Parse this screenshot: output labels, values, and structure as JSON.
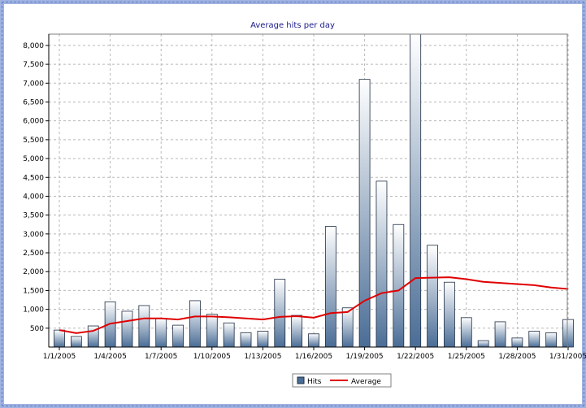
{
  "chart_data": {
    "type": "bar",
    "title": "Average hits per day",
    "xlabel": "",
    "ylabel": "",
    "ylim": [
      0,
      8300
    ],
    "yticks": [
      500,
      1000,
      1500,
      2000,
      2500,
      3000,
      3500,
      4000,
      4500,
      5000,
      5500,
      6000,
      6500,
      7000,
      7500,
      8000
    ],
    "ytick_labels": [
      "500",
      "1,000",
      "1,500",
      "2,000",
      "2,500",
      "3,000",
      "3,500",
      "4,000",
      "4,500",
      "5,000",
      "5,500",
      "6,000",
      "6,500",
      "7,000",
      "7,500",
      "8,000"
    ],
    "categories": [
      "1/1/2005",
      "1/2/2005",
      "1/3/2005",
      "1/4/2005",
      "1/5/2005",
      "1/6/2005",
      "1/7/2005",
      "1/8/2005",
      "1/9/2005",
      "1/10/2005",
      "1/11/2005",
      "1/12/2005",
      "1/13/2005",
      "1/14/2005",
      "1/15/2005",
      "1/16/2005",
      "1/17/2005",
      "1/18/2005",
      "1/19/2005",
      "1/20/2005",
      "1/21/2005",
      "1/22/2005",
      "1/23/2005",
      "1/24/2005",
      "1/25/2005",
      "1/26/2005",
      "1/27/2005",
      "1/28/2005",
      "1/29/2005",
      "1/30/2005",
      "1/31/2005"
    ],
    "xtick_labels": [
      "1/1/2005",
      "1/4/2005",
      "1/7/2005",
      "1/10/2005",
      "1/13/2005",
      "1/16/2005",
      "1/19/2005",
      "1/22/2005",
      "1/25/2005",
      "1/28/2005",
      "1/31/2005"
    ],
    "series": [
      {
        "name": "Hits",
        "type": "bar",
        "color": "#4a6d96",
        "values": [
          450,
          280,
          560,
          1200,
          950,
          1100,
          760,
          580,
          1230,
          870,
          640,
          380,
          420,
          1800,
          840,
          350,
          3200,
          1040,
          7100,
          4400,
          3250,
          8300,
          2700,
          1720,
          780,
          170,
          670,
          240,
          420,
          380,
          730
        ]
      },
      {
        "name": "Average",
        "type": "line",
        "color": "#e00000",
        "values": [
          450,
          370,
          430,
          620,
          690,
          760,
          760,
          730,
          810,
          810,
          790,
          760,
          730,
          800,
          820,
          780,
          900,
          930,
          1230,
          1430,
          1500,
          1830,
          1840,
          1850,
          1800,
          1730,
          1700,
          1670,
          1640,
          1580,
          1540
        ]
      }
    ],
    "grid": true,
    "legend": "bottom-center"
  }
}
